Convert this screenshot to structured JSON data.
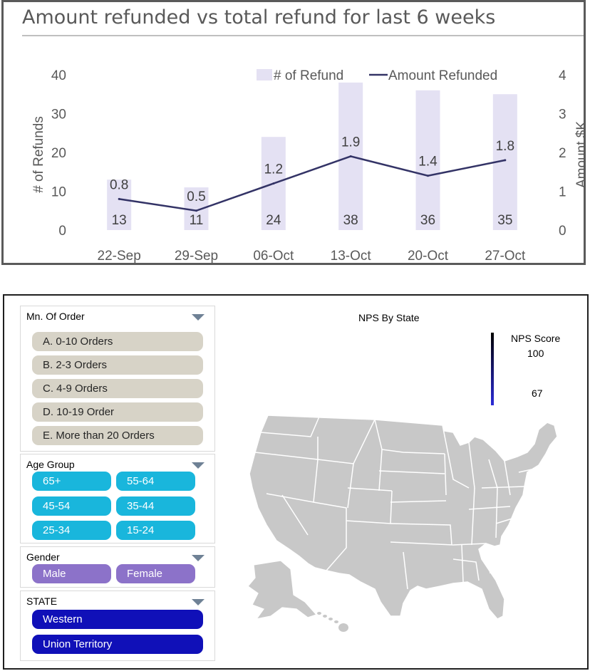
{
  "chart_data": {
    "type": "bar+line",
    "title": "Amount refunded vs total refund for last 6 weeks",
    "categories": [
      "22-Sep",
      "29-Sep",
      "06-Oct",
      "13-Oct",
      "20-Oct",
      "27-Oct"
    ],
    "series": [
      {
        "name": "# of Refund",
        "type": "bar",
        "axis": "left",
        "values": [
          13,
          11,
          24,
          38,
          36,
          35
        ],
        "color": "#e4e1f3"
      },
      {
        "name": "Amount Refunded",
        "type": "line",
        "axis": "right",
        "values": [
          0.8,
          0.5,
          1.2,
          1.9,
          1.4,
          1.8
        ],
        "color": "#333366"
      }
    ],
    "ylabel": "# of Refunds",
    "ylabel_right": "Amount $K",
    "ylim": [
      0,
      40
    ],
    "ylim_right": [
      0,
      4
    ],
    "yticks": [
      "0",
      "10",
      "20",
      "30",
      "40"
    ],
    "yticks_right": [
      "0",
      "1",
      "2",
      "3",
      "4"
    ],
    "legend": "top-right",
    "grid": false
  },
  "dashboard": {
    "order_slicer": {
      "title": "Mn. Of Order",
      "items": [
        "A. 0-10 Orders",
        "B. 2-3 Orders",
        "C. 4-9 Orders",
        "D. 10-19 Order",
        "E. More than 20 Orders"
      ]
    },
    "age_slicer": {
      "title": "Age Group",
      "items": [
        "65+",
        "55-64",
        "45-54",
        "35-44",
        "25-34",
        "15-24"
      ]
    },
    "gender_slicer": {
      "title": "Gender",
      "items": [
        "Male",
        "Female"
      ]
    },
    "state_slicer": {
      "title": "STATE",
      "items": [
        "Western",
        "Union Territory"
      ]
    },
    "map": {
      "title": "NPS By State",
      "legend_title": "NPS Score",
      "legend_max": "100",
      "legend_min": "67",
      "fill_color": "#c8c8c8"
    }
  }
}
